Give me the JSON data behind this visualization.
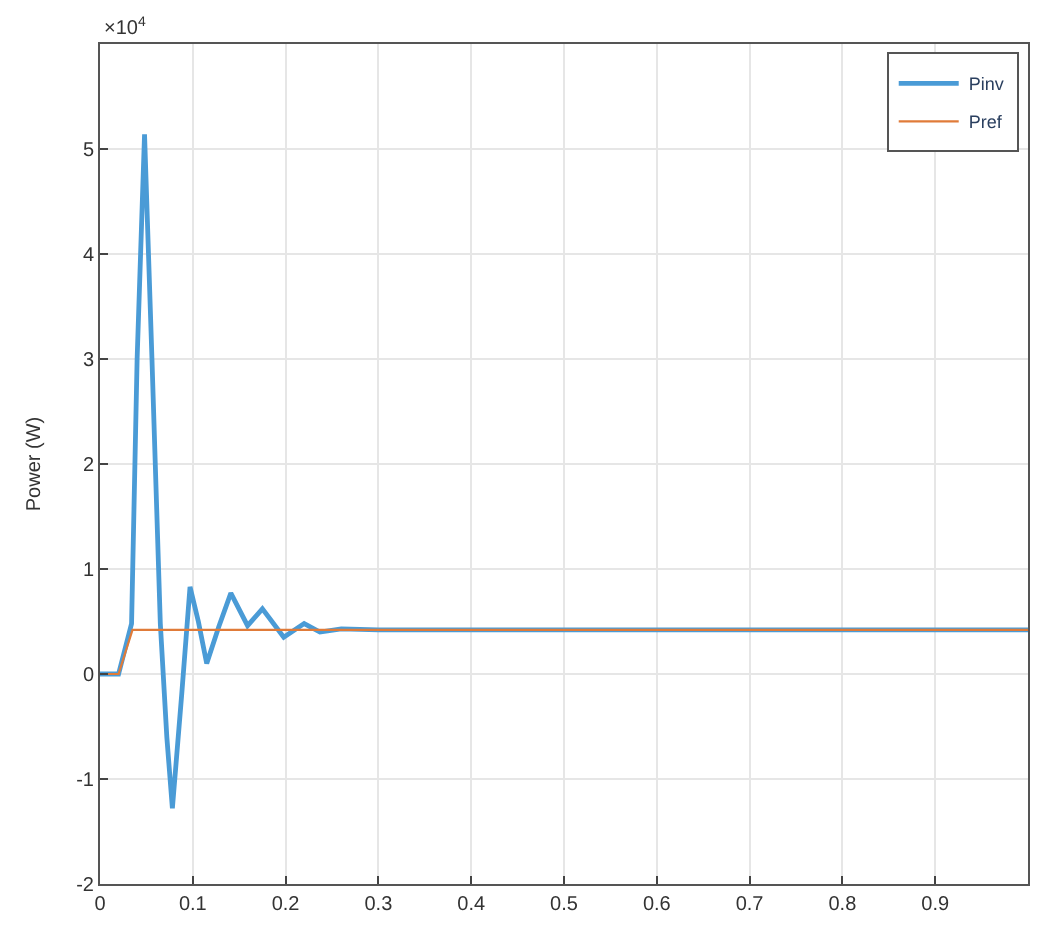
{
  "chart_data": {
    "type": "line",
    "ylabel": "Power (W)",
    "annotations": [
      "×10$^{4}$"
    ],
    "xlim": [
      0,
      1
    ],
    "xticks": [
      0,
      0.1,
      0.2,
      0.3,
      0.4,
      0.5,
      0.6,
      0.7,
      0.8,
      0.9
    ],
    "ylim": [
      -2,
      6
    ],
    "yticks": [
      -2,
      -1,
      0,
      1,
      2,
      3,
      4,
      5
    ],
    "grid": true,
    "legend": "top right",
    "marker": "none",
    "line_style": "solid",
    "series": [
      {
        "name": "Pinv",
        "color": "#4a9bd6",
        "x": [
          0,
          0.02,
          0.034,
          0.04,
          0.048,
          0.056,
          0.065,
          0.072,
          0.078,
          0.088,
          0.097,
          0.106,
          0.115,
          0.128,
          0.141,
          0.159,
          0.175,
          0.198,
          0.22,
          0.237,
          0.26,
          0.3,
          1
        ],
        "values": [
          0,
          0,
          0.48,
          3.0,
          5.14,
          3.0,
          0.48,
          -0.6,
          -1.28,
          -0.2,
          0.83,
          0.5,
          0.1,
          0.45,
          0.77,
          0.46,
          0.62,
          0.35,
          0.48,
          0.4,
          0.43,
          0.42,
          0.42
        ]
      },
      {
        "name": "Pref",
        "color": "#e07b39",
        "x": [
          0,
          0.02,
          0.035,
          1
        ],
        "values": [
          0,
          0,
          0.42,
          0.42
        ]
      }
    ]
  }
}
